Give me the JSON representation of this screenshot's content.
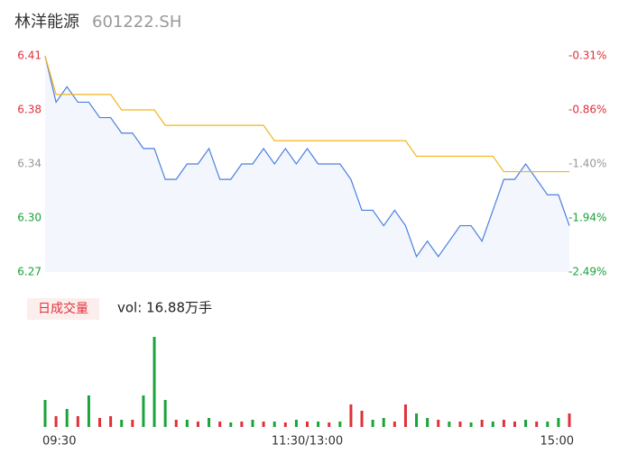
{
  "chart_data": [
    {
      "type": "line",
      "title": "林洋能源",
      "subtitle": "601222.SH",
      "categories": [
        "09:30",
        null,
        null,
        null,
        null,
        null,
        null,
        null,
        null,
        null,
        null,
        null,
        null,
        null,
        null,
        null,
        null,
        null,
        null,
        null,
        null,
        null,
        null,
        null,
        "11:30/13:00",
        null,
        null,
        null,
        null,
        null,
        null,
        null,
        null,
        null,
        null,
        null,
        null,
        null,
        null,
        null,
        null,
        null,
        null,
        null,
        null,
        null,
        null,
        null,
        "15:00"
      ],
      "series": [
        {
          "color": "#4a7fe0",
          "values": [
            6.41,
            6.38,
            6.39,
            6.38,
            6.38,
            6.37,
            6.37,
            6.36,
            6.36,
            6.35,
            6.35,
            6.33,
            6.33,
            6.34,
            6.34,
            6.35,
            6.33,
            6.33,
            6.34,
            6.34,
            6.35,
            6.34,
            6.35,
            6.34,
            6.35,
            6.34,
            6.34,
            6.34,
            6.33,
            6.31,
            6.31,
            6.3,
            6.31,
            6.3,
            6.28,
            6.29,
            6.28,
            6.29,
            6.3,
            6.3,
            6.29,
            6.31,
            6.33,
            6.33,
            6.34,
            6.33,
            6.32,
            6.32,
            6.3
          ]
        },
        {
          "color": "#f2b619",
          "values": [
            6.41,
            6.385,
            6.385,
            6.385,
            6.385,
            6.385,
            6.385,
            6.375,
            6.375,
            6.375,
            6.375,
            6.365,
            6.365,
            6.365,
            6.365,
            6.365,
            6.365,
            6.365,
            6.365,
            6.365,
            6.365,
            6.355,
            6.355,
            6.355,
            6.355,
            6.355,
            6.355,
            6.355,
            6.355,
            6.355,
            6.355,
            6.355,
            6.355,
            6.355,
            6.345,
            6.345,
            6.345,
            6.345,
            6.345,
            6.345,
            6.345,
            6.345,
            6.335,
            6.335,
            6.335,
            6.335,
            6.335,
            6.335,
            6.335
          ]
        }
      ],
      "ylim": [
        6.27,
        6.41
      ],
      "yticks": [
        6.41,
        {
          "value": 6.375,
          "label": "6.38"
        },
        6.34,
        {
          "value": 6.305,
          "label": "6.30"
        },
        6.27
      ],
      "ytick_colors": [
        "#e0303a",
        "#e0303a",
        "#999999",
        "#1aa33a",
        "#1aa33a"
      ],
      "y2lim": [
        -2.49,
        -0.31
      ],
      "y2ticks": [
        {
          "value": -0.31,
          "label": "-0.31%"
        },
        {
          "value": -0.855,
          "label": "-0.86%"
        },
        {
          "value": -1.4,
          "label": "-1.40%"
        },
        {
          "value": -1.945,
          "label": "-1.94%"
        },
        {
          "value": -2.49,
          "label": "-2.49%"
        }
      ],
      "fill": "#f3f6fd"
    },
    {
      "type": "bar",
      "title": "日成交量",
      "annotation": "vol: 16.88万手",
      "values": [
        30,
        12,
        20,
        12,
        35,
        10,
        12,
        8,
        8,
        35,
        100,
        30,
        8,
        8,
        6,
        10,
        6,
        5,
        6,
        8,
        6,
        6,
        5,
        8,
        6,
        6,
        5,
        6,
        25,
        18,
        8,
        10,
        6,
        25,
        15,
        10,
        8,
        6,
        6,
        5,
        8,
        6,
        8,
        6,
        8,
        6,
        6,
        10,
        15
      ],
      "colors": [
        "#1aa33a",
        "#e0303a",
        "#1aa33a",
        "#e0303a",
        "#1aa33a",
        "#e0303a",
        "#e0303a",
        "#1aa33a",
        "#e0303a",
        "#1aa33a",
        "#1aa33a",
        "#1aa33a",
        "#e0303a",
        "#1aa33a",
        "#e0303a",
        "#1aa33a",
        "#e0303a",
        "#1aa33a",
        "#e0303a",
        "#1aa33a",
        "#e0303a",
        "#1aa33a",
        "#e0303a",
        "#1aa33a",
        "#e0303a",
        "#1aa33a",
        "#e0303a",
        "#1aa33a",
        "#e0303a",
        "#e0303a",
        "#1aa33a",
        "#1aa33a",
        "#e0303a",
        "#e0303a",
        "#1aa33a",
        "#1aa33a",
        "#e0303a",
        "#1aa33a",
        "#e0303a",
        "#1aa33a",
        "#e0303a",
        "#1aa33a",
        "#e0303a",
        "#e0303a",
        "#1aa33a",
        "#e0303a",
        "#1aa33a",
        "#1aa33a",
        "#e0303a"
      ],
      "ylim": [
        0,
        105
      ]
    }
  ]
}
